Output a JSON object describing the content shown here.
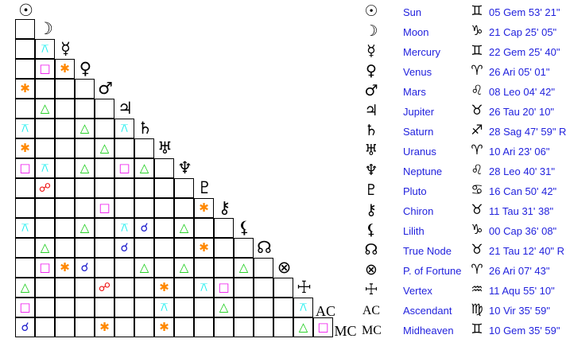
{
  "points": [
    {
      "name": "Sun",
      "glyph": "☉",
      "sign": "♊",
      "position": "05 Gem 53' 21\""
    },
    {
      "name": "Moon",
      "glyph": "☽",
      "sign": "♑",
      "position": "21 Cap 25' 05\""
    },
    {
      "name": "Mercury",
      "glyph": "☿",
      "sign": "♊",
      "position": "22 Gem 25' 40\""
    },
    {
      "name": "Venus",
      "glyph": "♀",
      "sign": "♈",
      "position": "26 Ari 05' 01\""
    },
    {
      "name": "Mars",
      "glyph": "♂",
      "sign": "♌",
      "position": "08 Leo 04' 42\""
    },
    {
      "name": "Jupiter",
      "glyph": "♃",
      "sign": "♉",
      "position": "26 Tau 20' 10\""
    },
    {
      "name": "Saturn",
      "glyph": "♄",
      "sign": "♐",
      "position": "28 Sag 47' 59\" R"
    },
    {
      "name": "Uranus",
      "glyph": "♅",
      "sign": "♈",
      "position": "10 Ari 23' 06\""
    },
    {
      "name": "Neptune",
      "glyph": "♆",
      "sign": "♌",
      "position": "28 Leo 40' 31\""
    },
    {
      "name": "Pluto",
      "glyph": "♇",
      "sign": "♋",
      "position": "16 Can 50' 42\""
    },
    {
      "name": "Chiron",
      "glyph": "⚷",
      "sign": "♉",
      "position": "11 Tau 31' 38\""
    },
    {
      "name": "Lilith",
      "glyph": "⚸",
      "sign": "♑",
      "position": "00 Cap 36' 08\""
    },
    {
      "name": "True Node",
      "glyph": "☊",
      "sign": "♉",
      "position": "21 Tau 12' 40\" R"
    },
    {
      "name": "P. of Fortune",
      "glyph": "⊗",
      "sign": "♈",
      "position": "26 Ari 07' 43\""
    },
    {
      "name": "Vertex",
      "glyph": "☩",
      "sign": "♒",
      "position": "11 Aqu 55' 10\""
    },
    {
      "name": "Ascendant",
      "glyph": "AC",
      "sign": "♍",
      "position": "10 Vir 35' 59\""
    },
    {
      "name": "Midheaven",
      "glyph": "MC",
      "sign": "♊",
      "position": "10 Gem 35' 59\""
    }
  ],
  "aspect_types": {
    "conjunction": {
      "glyph": "☌",
      "color": "#1a1acc"
    },
    "opposition": {
      "glyph": "☍",
      "color": "#ee1111"
    },
    "trine": {
      "glyph": "△",
      "color": "#11cc11"
    },
    "square": {
      "glyph": "□",
      "color": "#ee11ee"
    },
    "sextile": {
      "glyph": "✱",
      "color": "#ff8800"
    },
    "quincunx": {
      "glyph": "⚻",
      "color": "#11eeee"
    }
  },
  "aspects": [
    {
      "a": "Mercury",
      "b": "Moon",
      "type": "quincunx"
    },
    {
      "a": "Venus",
      "b": "Moon",
      "type": "square"
    },
    {
      "a": "Venus",
      "b": "Mercury",
      "type": "sextile"
    },
    {
      "a": "Mars",
      "b": "Sun",
      "type": "sextile"
    },
    {
      "a": "Jupiter",
      "b": "Moon",
      "type": "trine"
    },
    {
      "a": "Saturn",
      "b": "Sun",
      "type": "quincunx"
    },
    {
      "a": "Saturn",
      "b": "Venus",
      "type": "trine"
    },
    {
      "a": "Saturn",
      "b": "Jupiter",
      "type": "quincunx"
    },
    {
      "a": "Uranus",
      "b": "Sun",
      "type": "sextile"
    },
    {
      "a": "Uranus",
      "b": "Mars",
      "type": "trine"
    },
    {
      "a": "Neptune",
      "b": "Sun",
      "type": "square"
    },
    {
      "a": "Neptune",
      "b": "Moon",
      "type": "quincunx"
    },
    {
      "a": "Neptune",
      "b": "Venus",
      "type": "trine"
    },
    {
      "a": "Neptune",
      "b": "Jupiter",
      "type": "square"
    },
    {
      "a": "Neptune",
      "b": "Saturn",
      "type": "trine"
    },
    {
      "a": "Pluto",
      "b": "Moon",
      "type": "opposition"
    },
    {
      "a": "Chiron",
      "b": "Mars",
      "type": "square"
    },
    {
      "a": "Chiron",
      "b": "Pluto",
      "type": "sextile"
    },
    {
      "a": "Lilith",
      "b": "Sun",
      "type": "quincunx"
    },
    {
      "a": "Lilith",
      "b": "Venus",
      "type": "trine"
    },
    {
      "a": "Lilith",
      "b": "Jupiter",
      "type": "quincunx"
    },
    {
      "a": "Lilith",
      "b": "Saturn",
      "type": "conjunction"
    },
    {
      "a": "Lilith",
      "b": "Neptune",
      "type": "trine"
    },
    {
      "a": "True Node",
      "b": "Moon",
      "type": "trine"
    },
    {
      "a": "True Node",
      "b": "Jupiter",
      "type": "conjunction"
    },
    {
      "a": "True Node",
      "b": "Pluto",
      "type": "sextile"
    },
    {
      "a": "P. of Fortune",
      "b": "Moon",
      "type": "square"
    },
    {
      "a": "P. of Fortune",
      "b": "Mercury",
      "type": "sextile"
    },
    {
      "a": "P. of Fortune",
      "b": "Venus",
      "type": "conjunction"
    },
    {
      "a": "P. of Fortune",
      "b": "Saturn",
      "type": "trine"
    },
    {
      "a": "P. of Fortune",
      "b": "Neptune",
      "type": "trine"
    },
    {
      "a": "P. of Fortune",
      "b": "Lilith",
      "type": "trine"
    },
    {
      "a": "Vertex",
      "b": "Sun",
      "type": "trine"
    },
    {
      "a": "Vertex",
      "b": "Mars",
      "type": "opposition"
    },
    {
      "a": "Vertex",
      "b": "Uranus",
      "type": "sextile"
    },
    {
      "a": "Vertex",
      "b": "Pluto",
      "type": "quincunx"
    },
    {
      "a": "Vertex",
      "b": "Chiron",
      "type": "square"
    },
    {
      "a": "Ascendant",
      "b": "Sun",
      "type": "square"
    },
    {
      "a": "Ascendant",
      "b": "Uranus",
      "type": "quincunx"
    },
    {
      "a": "Ascendant",
      "b": "Chiron",
      "type": "trine"
    },
    {
      "a": "Ascendant",
      "b": "Vertex",
      "type": "quincunx"
    },
    {
      "a": "Midheaven",
      "b": "Sun",
      "type": "conjunction"
    },
    {
      "a": "Midheaven",
      "b": "Mars",
      "type": "sextile"
    },
    {
      "a": "Midheaven",
      "b": "Uranus",
      "type": "sextile"
    },
    {
      "a": "Midheaven",
      "b": "Vertex",
      "type": "trine"
    },
    {
      "a": "Midheaven",
      "b": "Ascendant",
      "type": "square"
    }
  ]
}
